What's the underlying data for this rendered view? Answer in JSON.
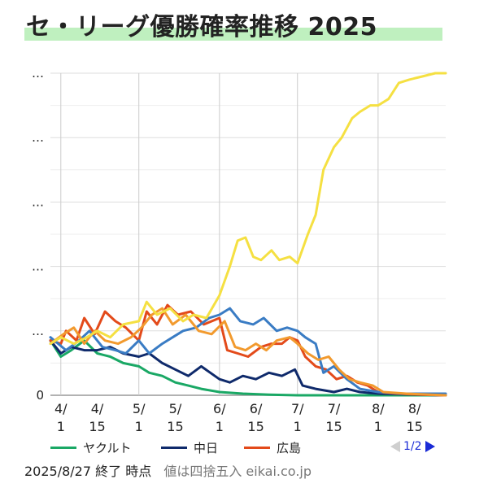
{
  "title": "セ・リーグ優勝確率推移 2025",
  "colors": {
    "title_highlight": "#bff0bf",
    "pager_active": "#1a2bd6",
    "pager_inactive": "#cfcfcf"
  },
  "legend": [
    {
      "label": "ヤクルト",
      "color": "#1aa865"
    },
    {
      "label": "中日",
      "color": "#0f2a6b"
    },
    {
      "label": "広島",
      "color": "#e34a1a"
    }
  ],
  "pager": {
    "text": "1/2"
  },
  "footer": {
    "status": "2025/8/27 終了 時点",
    "note": "値は四捨五入 eikai.co.jp"
  },
  "chart_data": {
    "type": "line",
    "title": "セ・リーグ優勝確率推移 2025",
    "y_tick_labels": [
      "0",
      "…",
      "…",
      "…",
      "…",
      "…"
    ],
    "y_ticks": [
      0,
      20,
      40,
      60,
      80,
      100
    ],
    "ylim": [
      0,
      100
    ],
    "x_tick_labels": [
      [
        "4/",
        "1"
      ],
      [
        "4/",
        "15"
      ],
      [
        "5/",
        "1"
      ],
      [
        "5/",
        "15"
      ],
      [
        "6/",
        "1"
      ],
      [
        "6/",
        "15"
      ],
      [
        "7/",
        "1"
      ],
      [
        "7/",
        "15"
      ],
      [
        "8/",
        "1"
      ],
      [
        "8/",
        "15"
      ]
    ],
    "x_ticks": [
      "2025-04-01",
      "2025-04-15",
      "2025-05-01",
      "2025-05-15",
      "2025-06-01",
      "2025-06-15",
      "2025-07-01",
      "2025-07-15",
      "2025-08-01",
      "2025-08-15"
    ],
    "xlim": [
      "2025-03-28",
      "2025-08-27"
    ],
    "grid": true,
    "legend_position": "bottom",
    "series": [
      {
        "name": "ヤクルト",
        "color": "#1aa865",
        "points": [
          [
            "2025-03-28",
            17
          ],
          [
            "2025-04-01",
            12
          ],
          [
            "2025-04-05",
            14
          ],
          [
            "2025-04-10",
            17
          ],
          [
            "2025-04-15",
            13
          ],
          [
            "2025-04-20",
            12
          ],
          [
            "2025-04-25",
            10
          ],
          [
            "2025-05-01",
            9
          ],
          [
            "2025-05-05",
            7
          ],
          [
            "2025-05-10",
            6
          ],
          [
            "2025-05-15",
            4
          ],
          [
            "2025-05-20",
            3
          ],
          [
            "2025-05-25",
            2
          ],
          [
            "2025-06-01",
            1
          ],
          [
            "2025-06-10",
            0.5
          ],
          [
            "2025-06-20",
            0.2
          ],
          [
            "2025-07-01",
            0
          ],
          [
            "2025-08-27",
            0
          ]
        ]
      },
      {
        "name": "中日",
        "color": "#0f2a6b",
        "points": [
          [
            "2025-03-28",
            17
          ],
          [
            "2025-04-01",
            13
          ],
          [
            "2025-04-05",
            15
          ],
          [
            "2025-04-10",
            14
          ],
          [
            "2025-04-15",
            14
          ],
          [
            "2025-04-20",
            15
          ],
          [
            "2025-04-25",
            13
          ],
          [
            "2025-05-01",
            12
          ],
          [
            "2025-05-05",
            13
          ],
          [
            "2025-05-10",
            10
          ],
          [
            "2025-05-15",
            8
          ],
          [
            "2025-05-20",
            6
          ],
          [
            "2025-05-25",
            9
          ],
          [
            "2025-06-01",
            5
          ],
          [
            "2025-06-05",
            4
          ],
          [
            "2025-06-10",
            6
          ],
          [
            "2025-06-15",
            5
          ],
          [
            "2025-06-20",
            7
          ],
          [
            "2025-06-25",
            6
          ],
          [
            "2025-06-30",
            8
          ],
          [
            "2025-07-03",
            3
          ],
          [
            "2025-07-08",
            2
          ],
          [
            "2025-07-15",
            1
          ],
          [
            "2025-07-20",
            2
          ],
          [
            "2025-07-25",
            1
          ],
          [
            "2025-08-01",
            0.5
          ],
          [
            "2025-08-10",
            0.3
          ],
          [
            "2025-08-27",
            0
          ]
        ]
      },
      {
        "name": "広島",
        "color": "#e34a1a",
        "points": [
          [
            "2025-03-28",
            17
          ],
          [
            "2025-04-01",
            16
          ],
          [
            "2025-04-03",
            20
          ],
          [
            "2025-04-07",
            17
          ],
          [
            "2025-04-10",
            24
          ],
          [
            "2025-04-14",
            19
          ],
          [
            "2025-04-18",
            26
          ],
          [
            "2025-04-22",
            23
          ],
          [
            "2025-04-26",
            21
          ],
          [
            "2025-05-01",
            17
          ],
          [
            "2025-05-04",
            26
          ],
          [
            "2025-05-08",
            22
          ],
          [
            "2025-05-12",
            28
          ],
          [
            "2025-05-16",
            25
          ],
          [
            "2025-05-21",
            26
          ],
          [
            "2025-05-26",
            22
          ],
          [
            "2025-06-01",
            24
          ],
          [
            "2025-06-04",
            14
          ],
          [
            "2025-06-08",
            13
          ],
          [
            "2025-06-12",
            12
          ],
          [
            "2025-06-17",
            15
          ],
          [
            "2025-06-21",
            16
          ],
          [
            "2025-06-25",
            16
          ],
          [
            "2025-06-28",
            18
          ],
          [
            "2025-07-01",
            17
          ],
          [
            "2025-07-04",
            12
          ],
          [
            "2025-07-08",
            9
          ],
          [
            "2025-07-12",
            8
          ],
          [
            "2025-07-16",
            5
          ],
          [
            "2025-07-20",
            6
          ],
          [
            "2025-07-24",
            4
          ],
          [
            "2025-07-28",
            3
          ],
          [
            "2025-08-01",
            1
          ],
          [
            "2025-08-08",
            0.5
          ],
          [
            "2025-08-18",
            0.2
          ],
          [
            "2025-08-27",
            0
          ]
        ]
      },
      {
        "name": "",
        "color": "#3a7cc4",
        "points": [
          [
            "2025-03-28",
            18
          ],
          [
            "2025-04-03",
            14
          ],
          [
            "2025-04-08",
            17
          ],
          [
            "2025-04-12",
            20
          ],
          [
            "2025-04-17",
            15
          ],
          [
            "2025-04-22",
            14
          ],
          [
            "2025-04-26",
            13
          ],
          [
            "2025-05-01",
            17
          ],
          [
            "2025-05-05",
            13
          ],
          [
            "2025-05-10",
            16
          ],
          [
            "2025-05-14",
            18
          ],
          [
            "2025-05-18",
            20
          ],
          [
            "2025-05-23",
            21
          ],
          [
            "2025-05-28",
            24
          ],
          [
            "2025-06-01",
            25
          ],
          [
            "2025-06-05",
            27
          ],
          [
            "2025-06-09",
            23
          ],
          [
            "2025-06-14",
            22
          ],
          [
            "2025-06-18",
            24
          ],
          [
            "2025-06-23",
            20
          ],
          [
            "2025-06-27",
            21
          ],
          [
            "2025-07-01",
            20
          ],
          [
            "2025-07-04",
            18
          ],
          [
            "2025-07-08",
            16
          ],
          [
            "2025-07-11",
            7
          ],
          [
            "2025-07-15",
            9
          ],
          [
            "2025-07-20",
            5
          ],
          [
            "2025-07-25",
            2
          ],
          [
            "2025-08-01",
            1
          ],
          [
            "2025-08-10",
            0.5
          ],
          [
            "2025-08-27",
            0.5
          ]
        ]
      },
      {
        "name": "",
        "color": "#f29a2e",
        "points": [
          [
            "2025-03-28",
            16
          ],
          [
            "2025-04-02",
            19
          ],
          [
            "2025-04-06",
            21
          ],
          [
            "2025-04-10",
            16
          ],
          [
            "2025-04-14",
            20
          ],
          [
            "2025-04-18",
            17
          ],
          [
            "2025-04-23",
            16
          ],
          [
            "2025-04-28",
            18
          ],
          [
            "2025-05-02",
            21
          ],
          [
            "2025-05-06",
            25
          ],
          [
            "2025-05-10",
            27
          ],
          [
            "2025-05-14",
            22
          ],
          [
            "2025-05-19",
            25
          ],
          [
            "2025-05-24",
            20
          ],
          [
            "2025-05-29",
            19
          ],
          [
            "2025-06-03",
            23
          ],
          [
            "2025-06-07",
            15
          ],
          [
            "2025-06-11",
            14
          ],
          [
            "2025-06-15",
            16
          ],
          [
            "2025-06-19",
            14
          ],
          [
            "2025-06-23",
            17
          ],
          [
            "2025-06-28",
            18
          ],
          [
            "2025-07-01",
            16
          ],
          [
            "2025-07-05",
            13
          ],
          [
            "2025-07-09",
            11
          ],
          [
            "2025-07-13",
            12
          ],
          [
            "2025-07-17",
            8
          ],
          [
            "2025-07-21",
            5
          ],
          [
            "2025-07-25",
            4
          ],
          [
            "2025-07-30",
            3
          ],
          [
            "2025-08-03",
            1
          ],
          [
            "2025-08-12",
            0.5
          ],
          [
            "2025-08-27",
            0
          ]
        ]
      },
      {
        "name": "",
        "color": "#f5e042",
        "points": [
          [
            "2025-03-28",
            16
          ],
          [
            "2025-04-01",
            18
          ],
          [
            "2025-04-06",
            16
          ],
          [
            "2025-04-11",
            18
          ],
          [
            "2025-04-15",
            20
          ],
          [
            "2025-04-20",
            18
          ],
          [
            "2025-04-25",
            22
          ],
          [
            "2025-05-01",
            23
          ],
          [
            "2025-05-04",
            29
          ],
          [
            "2025-05-08",
            25
          ],
          [
            "2025-05-13",
            27
          ],
          [
            "2025-05-18",
            23
          ],
          [
            "2025-05-22",
            25
          ],
          [
            "2025-05-27",
            24
          ],
          [
            "2025-06-01",
            31
          ],
          [
            "2025-06-05",
            40
          ],
          [
            "2025-06-08",
            48
          ],
          [
            "2025-06-11",
            49
          ],
          [
            "2025-06-14",
            43
          ],
          [
            "2025-06-17",
            42
          ],
          [
            "2025-06-21",
            45
          ],
          [
            "2025-06-24",
            42
          ],
          [
            "2025-06-28",
            43
          ],
          [
            "2025-07-01",
            41
          ],
          [
            "2025-07-05",
            50
          ],
          [
            "2025-07-08",
            56
          ],
          [
            "2025-07-11",
            70
          ],
          [
            "2025-07-15",
            77
          ],
          [
            "2025-07-18",
            80
          ],
          [
            "2025-07-22",
            86
          ],
          [
            "2025-07-25",
            88
          ],
          [
            "2025-07-29",
            90
          ],
          [
            "2025-08-01",
            90
          ],
          [
            "2025-08-05",
            92
          ],
          [
            "2025-08-09",
            97
          ],
          [
            "2025-08-13",
            98
          ],
          [
            "2025-08-18",
            99
          ],
          [
            "2025-08-23",
            100
          ],
          [
            "2025-08-27",
            100
          ]
        ]
      }
    ]
  }
}
